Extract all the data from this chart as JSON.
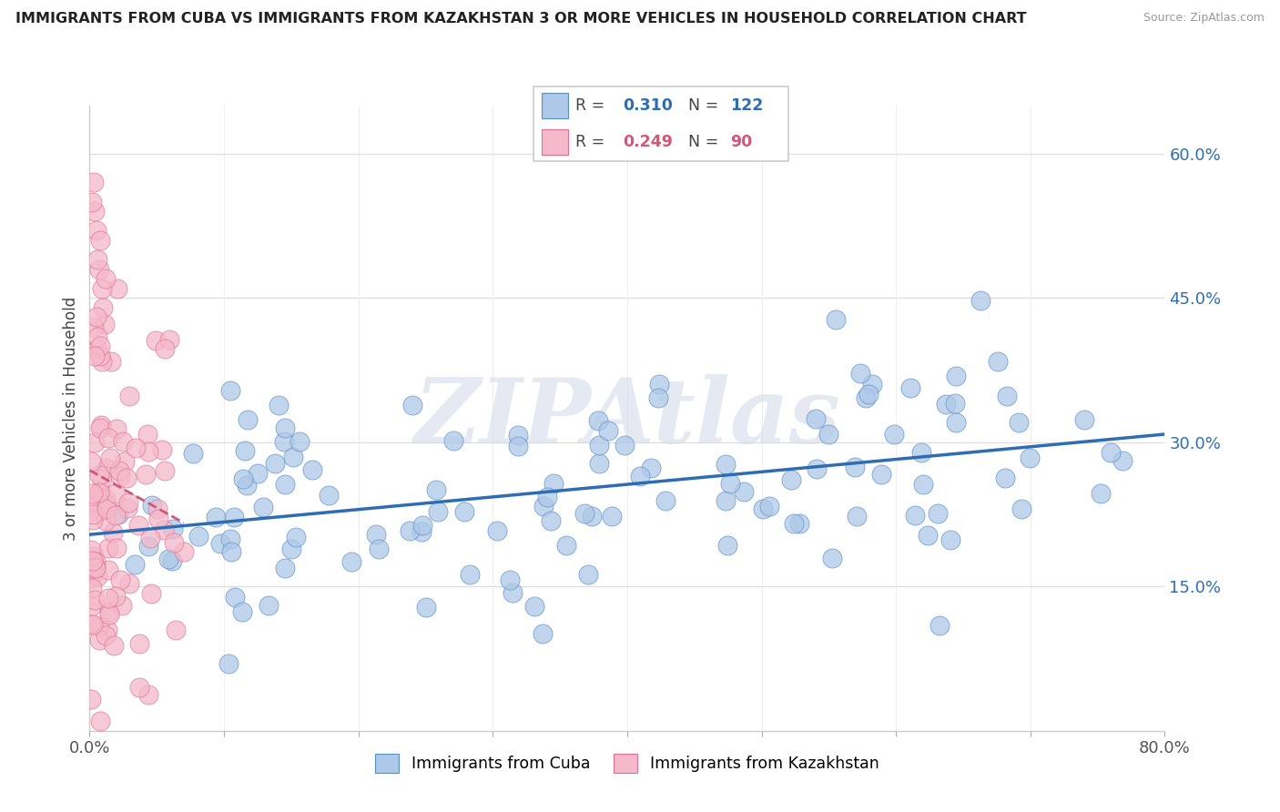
{
  "title": "IMMIGRANTS FROM CUBA VS IMMIGRANTS FROM KAZAKHSTAN 3 OR MORE VEHICLES IN HOUSEHOLD CORRELATION CHART",
  "source": "Source: ZipAtlas.com",
  "ylabel": "3 or more Vehicles in Household",
  "xlim": [
    0.0,
    0.8
  ],
  "ylim": [
    0.0,
    0.65
  ],
  "ytick_vals": [
    0.15,
    0.3,
    0.45,
    0.6
  ],
  "ytick_labels": [
    "15.0%",
    "30.0%",
    "45.0%",
    "60.0%"
  ],
  "cuba_R": 0.31,
  "cuba_N": 122,
  "kaz_R": 0.249,
  "kaz_N": 90,
  "cuba_color": "#adc8e8",
  "cuba_edge_color": "#5b8ec4",
  "cuba_line_color": "#2e6db4",
  "kaz_color": "#f4b8ca",
  "kaz_edge_color": "#e07090",
  "kaz_line_color": "#d05878",
  "watermark_text": "ZIPAtlas",
  "watermark_color": "#d0d8e8",
  "legend_top_label1": "R = ",
  "legend_top_val1": "0.310",
  "legend_top_n1": "N = ",
  "legend_top_nval1": "122",
  "legend_top_label2": "R = ",
  "legend_top_val2": "0.249",
  "legend_top_n2": "N = ",
  "legend_top_nval2": "90"
}
